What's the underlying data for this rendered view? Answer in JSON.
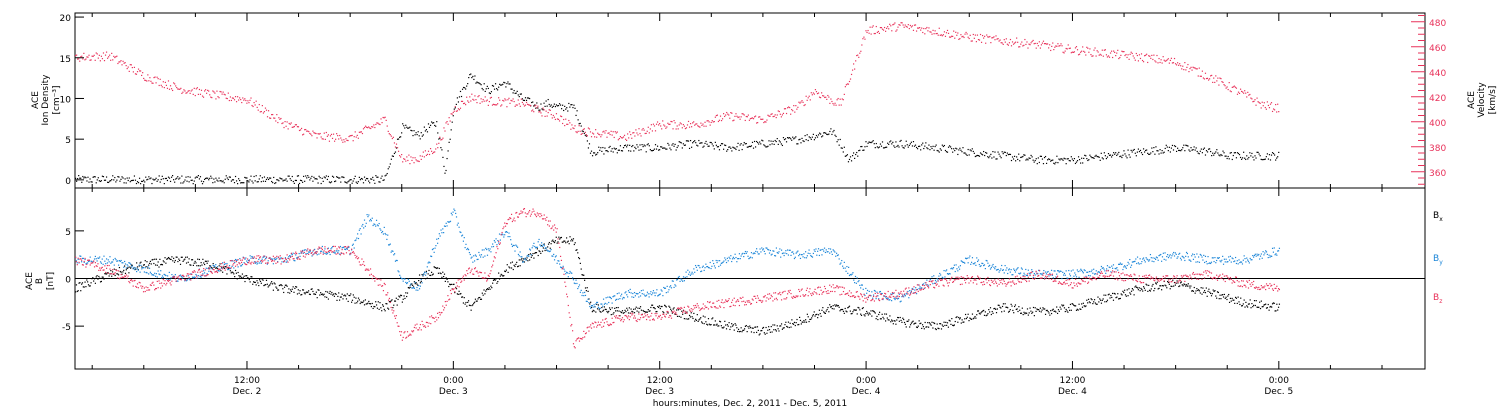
{
  "figure": {
    "x_axis_title": "hours:minutes, Dec.  2, 2011 - Dec.  5, 2011",
    "x_ticks": [
      {
        "time": "12:00",
        "date": "Dec. 2",
        "hour": 12
      },
      {
        "time": "0:00",
        "date": "Dec. 3",
        "hour": 24
      },
      {
        "time": "12:00",
        "date": "Dec. 3",
        "hour": 36
      },
      {
        "time": "0:00",
        "date": "Dec. 4",
        "hour": 48
      },
      {
        "time": "12:00",
        "date": "Dec. 4",
        "hour": 60
      },
      {
        "time": "0:00",
        "date": "Dec. 5",
        "hour": 72
      }
    ]
  },
  "chart_data": [
    {
      "type": "scatter",
      "panel": "density-velocity",
      "xlim": [
        2,
        80.5
      ],
      "ylabel": [
        "ACE",
        "Ion Density",
        "[cm⁻³]"
      ],
      "ylim": [
        -1,
        20.5
      ],
      "yticks": [
        0,
        5,
        10,
        15,
        20
      ],
      "ylabel_right": [
        "ACE",
        "Velocity",
        "[km/s]"
      ],
      "ylim_right": [
        347,
        487
      ],
      "yticks_right": [
        360,
        380,
        400,
        420,
        440,
        460,
        480
      ],
      "colors": {
        "density": "#000000",
        "velocity": "#e8325a"
      },
      "series": [
        {
          "name": "Ion Density",
          "axis": "left",
          "color": "#000000",
          "x": [
            2,
            6,
            10,
            14,
            18,
            20,
            21,
            22,
            22.5,
            23,
            23.5,
            24,
            25,
            26,
            27,
            28,
            29,
            29.5,
            30,
            31,
            32,
            34,
            36,
            38,
            40,
            42,
            44,
            45,
            46,
            46.5,
            47,
            48,
            50,
            52,
            54,
            56,
            58,
            60,
            62,
            64,
            66,
            68,
            69,
            70,
            72
          ],
          "y": [
            0.1,
            0.1,
            0.1,
            0.1,
            0.1,
            0.1,
            6.5,
            5.5,
            6.5,
            7,
            1,
            9,
            13,
            11,
            12,
            10,
            9,
            9.5,
            9,
            9,
            3.5,
            4,
            4,
            4.5,
            4,
            4.5,
            5,
            5.5,
            6,
            4.5,
            2.5,
            4.5,
            4.5,
            4,
            3.5,
            3,
            2.5,
            2.5,
            3,
            3.5,
            4,
            3.5,
            3,
            3,
            3
          ]
        },
        {
          "name": "Velocity",
          "axis": "right",
          "color": "#e8325a",
          "x": [
            2,
            4,
            6,
            8,
            10,
            12,
            14,
            16,
            18,
            20,
            21,
            22,
            23,
            24,
            25,
            26,
            28,
            29,
            30,
            31,
            32,
            34,
            36,
            38,
            40,
            42,
            44,
            45,
            46,
            46.5,
            48,
            50,
            52,
            54,
            56,
            58,
            60,
            62,
            64,
            66,
            67,
            68,
            70,
            71,
            72
          ],
          "y": [
            452,
            453,
            437,
            427,
            422,
            418,
            400,
            389,
            387,
            402,
            370,
            371,
            380,
            410,
            420,
            417,
            415,
            409,
            405,
            395,
            392,
            388,
            398,
            398,
            405,
            402,
            412,
            425,
            417,
            415,
            473,
            477,
            473,
            468,
            465,
            462,
            458,
            455,
            452,
            448,
            442,
            436,
            422,
            414,
            411
          ]
        }
      ]
    },
    {
      "type": "scatter",
      "panel": "magnetic-field",
      "xlim": [
        2,
        80.5
      ],
      "ylabel": [
        "ACE",
        "B",
        "[nT]"
      ],
      "ylim": [
        -9.5,
        9.5
      ],
      "yticks": [
        -5,
        0,
        5
      ],
      "zero_line": true,
      "series": [
        {
          "name": "Bx",
          "color": "#000000",
          "x": [
            2,
            4,
            6,
            8,
            10,
            12,
            14,
            16,
            18,
            20,
            21,
            22,
            23,
            24,
            25,
            26,
            27,
            28,
            29,
            30,
            31,
            32,
            34,
            36,
            38,
            40,
            42,
            44,
            46,
            48,
            50,
            52,
            54,
            56,
            58,
            60,
            62,
            64,
            66,
            68,
            70,
            72
          ],
          "y": [
            -1,
            0.5,
            1.5,
            2,
            1.5,
            0,
            -1,
            -1.5,
            -2,
            -3,
            -2,
            0,
            1,
            -1,
            -3,
            -1,
            1,
            2,
            3,
            4,
            4,
            -3,
            -3.5,
            -3,
            -4,
            -5,
            -5.5,
            -4.5,
            -3,
            -3.5,
            -4.5,
            -5,
            -4,
            -3,
            -3.5,
            -3,
            -2,
            -1,
            -0.5,
            -1.5,
            -2.5,
            -3
          ]
        },
        {
          "name": "By",
          "color": "#1c86d8",
          "x": [
            2,
            4,
            6,
            8,
            10,
            12,
            14,
            16,
            18,
            19,
            20,
            21,
            22,
            23,
            24,
            25,
            26,
            27,
            28,
            29,
            30,
            31,
            32,
            34,
            36,
            38,
            40,
            42,
            44,
            46,
            48,
            50,
            52,
            54,
            56,
            58,
            60,
            62,
            64,
            66,
            68,
            70,
            72
          ],
          "y": [
            2,
            2,
            1,
            0,
            1,
            2,
            2,
            3,
            3,
            6.5,
            5,
            0,
            -1,
            4,
            7,
            2,
            3,
            5,
            2,
            4,
            2,
            0,
            -3,
            -1.5,
            -1.5,
            1,
            2,
            3,
            2.5,
            3,
            -1.5,
            -2,
            0,
            2,
            1,
            0.5,
            0.5,
            1,
            2,
            2.5,
            2,
            2,
            3
          ]
        },
        {
          "name": "Bz",
          "color": "#e8325a",
          "x": [
            2,
            4,
            6,
            8,
            10,
            12,
            14,
            16,
            18,
            20,
            21,
            22,
            23,
            24,
            25,
            26,
            27,
            28,
            29,
            30,
            31,
            32,
            34,
            36,
            38,
            40,
            42,
            44,
            46,
            48,
            50,
            52,
            54,
            56,
            58,
            60,
            62,
            64,
            66,
            68,
            70,
            72
          ],
          "y": [
            2,
            1,
            -1,
            0,
            1,
            2,
            2,
            3,
            3,
            -1,
            -6,
            -5,
            -4,
            -1,
            1,
            0,
            6,
            7,
            7,
            5,
            -7,
            -5,
            -4,
            -4,
            -3,
            -2.5,
            -2,
            -1.5,
            -1,
            -2,
            -1.5,
            -0.5,
            0,
            -0.5,
            0.5,
            -0.5,
            0.5,
            0,
            0,
            0.5,
            -0.5,
            -1
          ]
        }
      ]
    }
  ]
}
